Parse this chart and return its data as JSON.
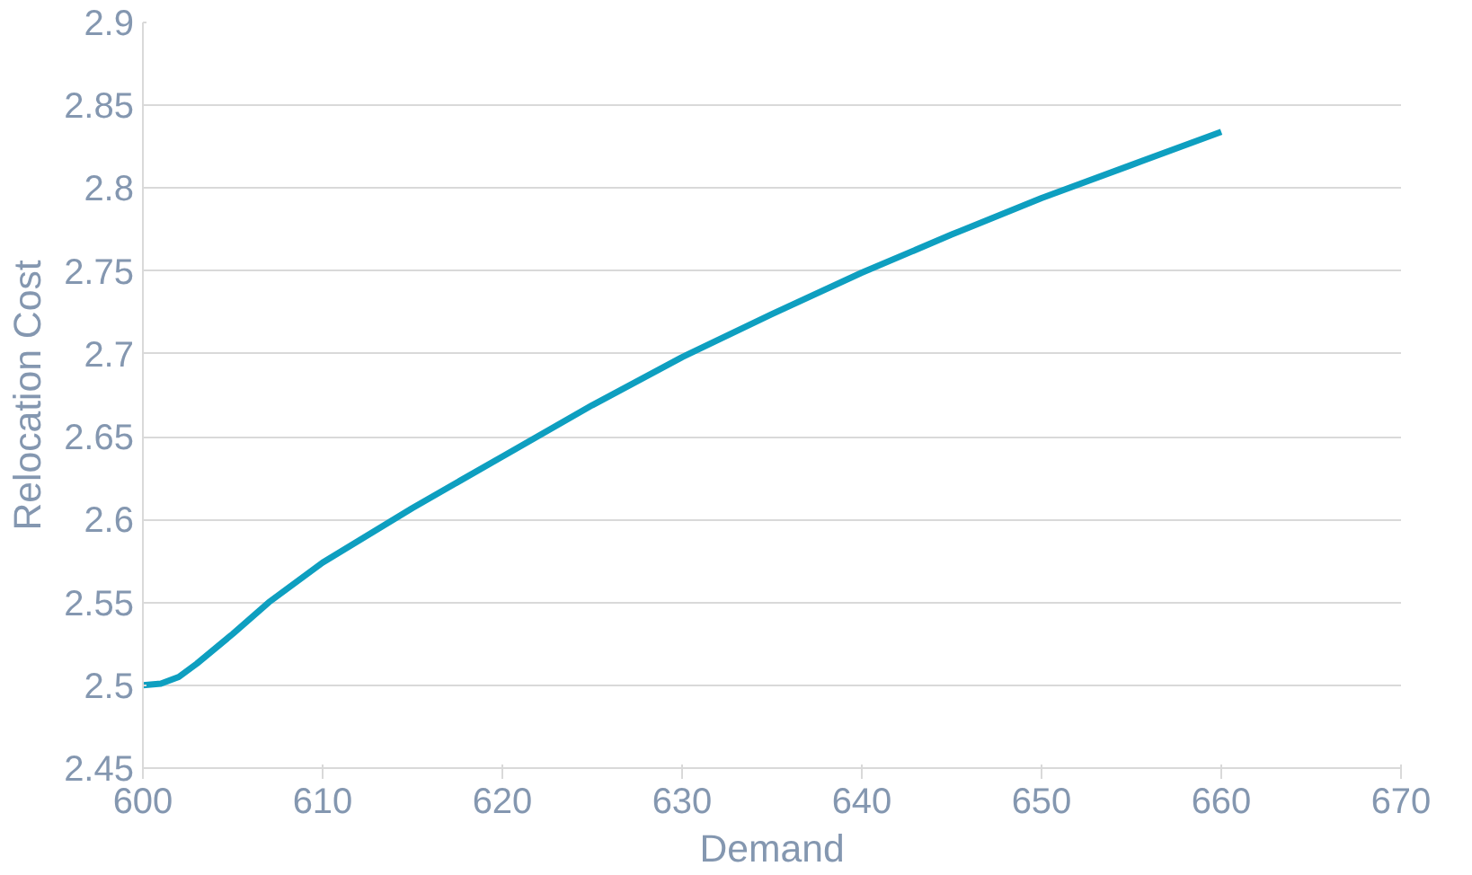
{
  "chart_data": {
    "type": "line",
    "xlabel": "Demand",
    "ylabel": "Relocation Cost",
    "x": [
      600,
      601,
      602,
      603,
      605,
      607,
      610,
      615,
      620,
      625,
      630,
      635,
      640,
      645,
      650,
      655,
      660
    ],
    "series": [
      {
        "color": "#0e9fc0",
        "values": [
          2.5,
          2.501,
          2.505,
          2.513,
          2.531,
          2.55,
          2.574,
          2.607,
          2.638,
          2.669,
          2.698,
          2.724,
          2.749,
          2.772,
          2.794,
          2.814,
          2.834
        ]
      }
    ],
    "xlim": [
      600,
      670
    ],
    "xticks": [
      600,
      610,
      620,
      630,
      640,
      650,
      660,
      670
    ],
    "ylim": [
      2.45,
      2.9
    ],
    "yticks": [
      2.45,
      2.5,
      2.55,
      2.6,
      2.65,
      2.7,
      2.75,
      2.8,
      2.85,
      2.9
    ],
    "grid": "y",
    "marker": "none",
    "line_style": "solid"
  }
}
